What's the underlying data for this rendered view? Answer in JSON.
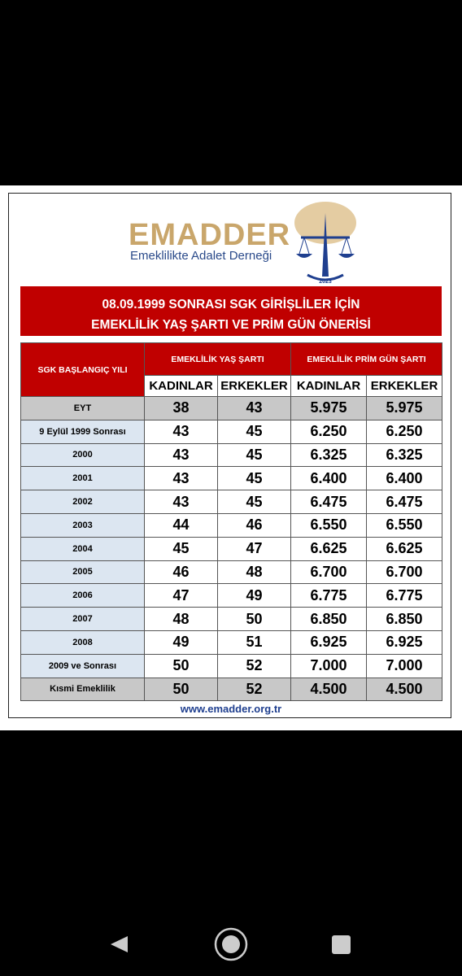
{
  "header": {
    "logo_title": "EMADDER",
    "logo_subtitle": "Emeklilikte Adalet Derneği",
    "logo_year": "2023"
  },
  "banner": {
    "line1": "08.09.1999 SONRASI SGK GİRİŞLİLER İÇİN",
    "line2": "EMEKLİLİK YAŞ ŞARTI VE PRİM GÜN ÖNERİSİ"
  },
  "table": {
    "columns": {
      "first": "SGK BAŞLANGIÇ YILI",
      "group1": "EMEKLİLİK YAŞ ŞARTI",
      "group2": "EMEKLİLİK PRİM GÜN ŞARTI",
      "sub": [
        "KADINLAR",
        "ERKEKLER",
        "KADINLAR",
        "ERKEKLER"
      ]
    },
    "rows": [
      [
        "EYT",
        38,
        43,
        "5.975",
        "5.975"
      ],
      [
        "9 Eylül 1999 Sonrası",
        43,
        45,
        "6.250",
        "6.250"
      ],
      [
        "2000",
        43,
        45,
        "6.325",
        "6.325"
      ],
      [
        "2001",
        43,
        45,
        "6.400",
        "6.400"
      ],
      [
        "2002",
        43,
        45,
        "6.475",
        "6.475"
      ],
      [
        "2003",
        44,
        46,
        "6.550",
        "6.550"
      ],
      [
        "2004",
        45,
        47,
        "6.625",
        "6.625"
      ],
      [
        "2005",
        46,
        48,
        "6.700",
        "6.700"
      ],
      [
        "2006",
        47,
        49,
        "6.775",
        "6.775"
      ],
      [
        "2007",
        48,
        50,
        "6.850",
        "6.850"
      ],
      [
        "2008",
        49,
        51,
        "6.925",
        "6.925"
      ],
      [
        "2009 ve Sonrası",
        50,
        52,
        "7.000",
        "7.000"
      ],
      [
        "Kısmi Emeklilik",
        50,
        52,
        "4.500",
        "4.500"
      ]
    ]
  },
  "footer": "www.emadder.org.tr"
}
